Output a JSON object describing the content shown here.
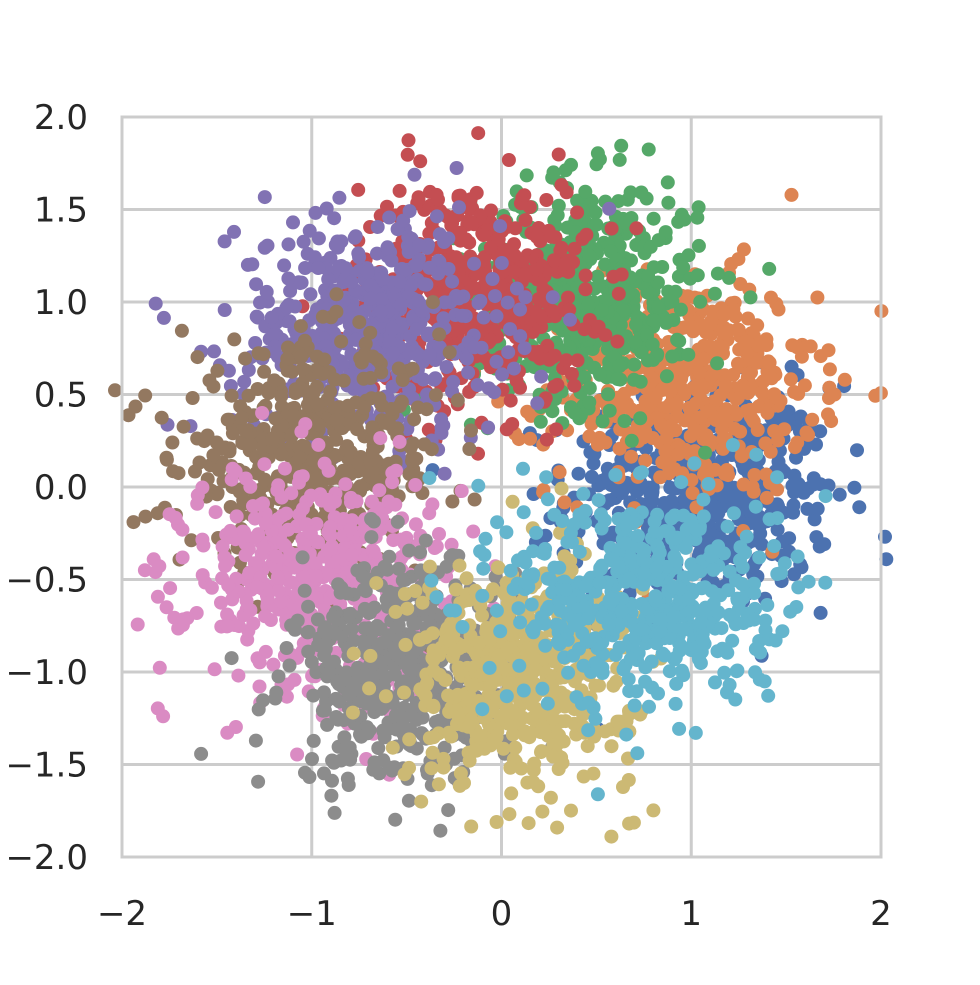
{
  "chart_data": {
    "type": "scatter",
    "title": "",
    "xlabel": "",
    "ylabel": "",
    "xlim": [
      -2,
      2
    ],
    "ylim": [
      -2,
      2
    ],
    "xticks": [
      -2,
      -1,
      0,
      1,
      2
    ],
    "xtick_labels": [
      "−2",
      "−1",
      "0",
      "1",
      "2"
    ],
    "yticks": [
      2.0,
      1.5,
      1.0,
      0.5,
      0.0,
      -0.5,
      -1.0,
      -1.5,
      -2.0
    ],
    "ytick_labels": [
      "2.0",
      "1.5",
      "1.0",
      "0.5",
      "0.0",
      "−0.5",
      "−1.0",
      "−1.5",
      "−2.0"
    ],
    "grid": true,
    "legend": "none",
    "style": {
      "background": "#ffffff",
      "grid_color": "#cccccc",
      "spine_color": "#cccccc",
      "text_color": "#262626"
    },
    "series": [
      {
        "color": "#4c72b0",
        "center": [
          1.05,
          -0.05
        ],
        "spread": [
          0.35,
          0.3
        ],
        "points": 520
      },
      {
        "color": "#dd8452",
        "center": [
          0.95,
          0.55
        ],
        "spread": [
          0.35,
          0.3
        ],
        "points": 520
      },
      {
        "color": "#55a868",
        "center": [
          0.45,
          1.05
        ],
        "spread": [
          0.3,
          0.3
        ],
        "points": 520
      },
      {
        "color": "#c44e52",
        "center": [
          -0.15,
          1.05
        ],
        "spread": [
          0.3,
          0.3
        ],
        "points": 520
      },
      {
        "color": "#8172b3",
        "center": [
          -0.7,
          0.85
        ],
        "spread": [
          0.35,
          0.3
        ],
        "points": 520
      },
      {
        "color": "#937860",
        "center": [
          -1.0,
          0.15
        ],
        "spread": [
          0.35,
          0.3
        ],
        "points": 520
      },
      {
        "color": "#da8bc3",
        "center": [
          -0.95,
          -0.5
        ],
        "spread": [
          0.35,
          0.3
        ],
        "points": 520
      },
      {
        "color": "#8c8c8c",
        "center": [
          -0.5,
          -1.0
        ],
        "spread": [
          0.3,
          0.3
        ],
        "points": 520
      },
      {
        "color": "#ccb974",
        "center": [
          0.1,
          -1.0
        ],
        "spread": [
          0.3,
          0.3
        ],
        "points": 520
      },
      {
        "color": "#64b5cd",
        "center": [
          0.75,
          -0.6
        ],
        "spread": [
          0.35,
          0.3
        ],
        "points": 520
      }
    ]
  }
}
